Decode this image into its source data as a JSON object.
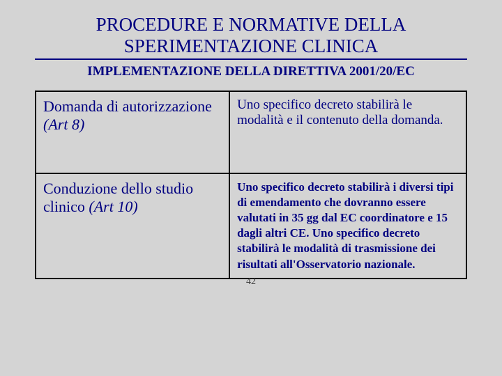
{
  "title_line1": "PROCEDURE E NORMATIVE DELLA",
  "title_line2": "SPERIMENTAZIONE CLINICA",
  "subtitle": "IMPLEMENTAZIONE DELLA DIRETTIVA 2001/20/EC",
  "table": {
    "rows": [
      {
        "left_plain": "Domanda di autorizzazione ",
        "left_italic": "(Art 8)",
        "right": "Uno specifico decreto stabilirà le modalità e il contenuto della domanda."
      },
      {
        "left_plain": "Conduzione dello studio clinico ",
        "left_italic": "(Art 10)",
        "right": "Uno specifico decreto stabilirà  i diversi tipi di emendamento che dovranno essere valutati in 35 gg dal EC coordinatore e 15 dagli altri CE. Uno specifico decreto stabilirà le modalità di trasmissione dei risultati all'Osservatorio nazionale."
      }
    ]
  },
  "page_number": "42",
  "colors": {
    "background": "#d4d4d4",
    "text": "#000080",
    "border": "#000000"
  }
}
